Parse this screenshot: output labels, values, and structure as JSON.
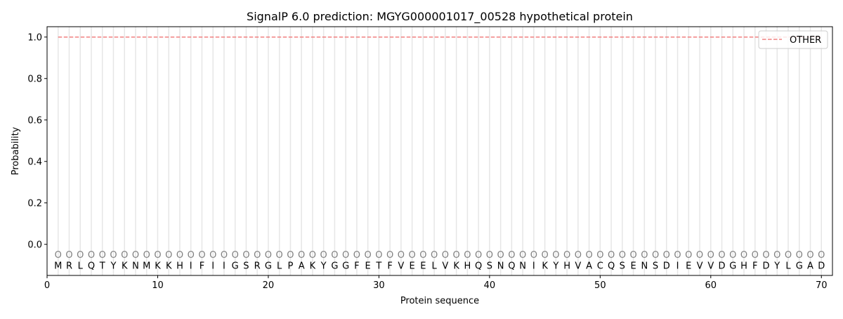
{
  "chart_data": {
    "type": "line",
    "title": "SignalP 6.0 prediction: MGYG000001017_00528 hypothetical protein",
    "xlabel": "Protein sequence",
    "ylabel": "Probability",
    "xlim": [
      0,
      71
    ],
    "ylim": [
      -0.15,
      1.05
    ],
    "xticks": [
      0,
      10,
      20,
      30,
      40,
      50,
      60,
      70
    ],
    "yticks": [
      0.0,
      0.2,
      0.4,
      0.6,
      0.8,
      1.0
    ],
    "ytick_labels": [
      "0.0",
      "0.2",
      "0.4",
      "0.6",
      "0.8",
      "1.0"
    ],
    "grid": "vertical lines at each residue",
    "legend_position": "top-right",
    "sequence": [
      "M",
      "R",
      "L",
      "Q",
      "T",
      "Y",
      "K",
      "N",
      "M",
      "K",
      "K",
      "H",
      "I",
      "F",
      "I",
      "I",
      "G",
      "S",
      "R",
      "G",
      "L",
      "P",
      "A",
      "K",
      "Y",
      "G",
      "G",
      "F",
      "E",
      "T",
      "F",
      "V",
      "E",
      "E",
      "L",
      "V",
      "K",
      "H",
      "Q",
      "S",
      "N",
      "Q",
      "N",
      "I",
      "K",
      "Y",
      "H",
      "V",
      "A",
      "C",
      "Q",
      "S",
      "E",
      "N",
      "S",
      "D",
      "I",
      "E",
      "V",
      "V",
      "D",
      "G",
      "H",
      "F",
      "D",
      "Y",
      "L",
      "G",
      "A",
      "D"
    ],
    "predicted_label": "O",
    "series": [
      {
        "name": "OTHER",
        "color": "#f08080",
        "style": "dashed",
        "x_start": 1,
        "x_end": 70,
        "value": 1.0
      }
    ]
  }
}
